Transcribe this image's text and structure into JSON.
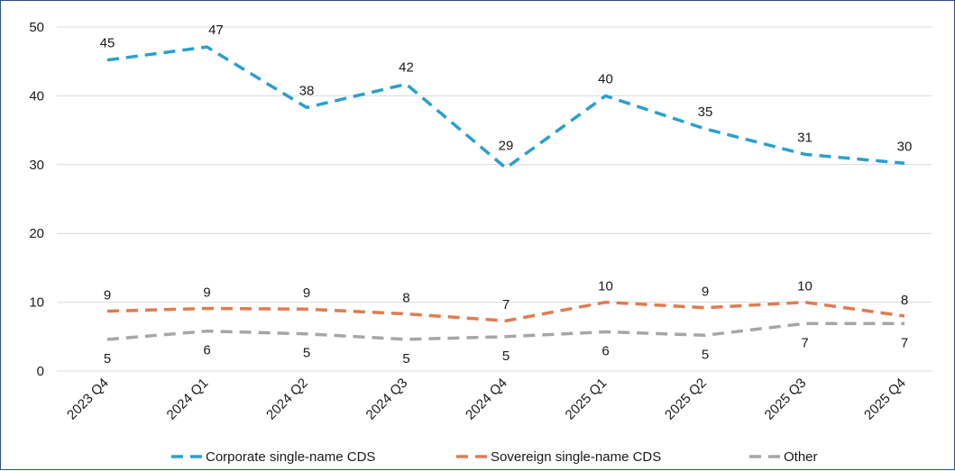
{
  "chart_data": {
    "type": "line",
    "title": "",
    "xlabel": "",
    "ylabel": "",
    "categories": [
      "2023 Q4",
      "2024 Q1",
      "2024 Q2",
      "2024 Q3",
      "2024 Q4",
      "2025 Q1",
      "2025 Q2",
      "2025 Q3",
      "2025 Q4"
    ],
    "ylim": [
      0,
      50
    ],
    "yticks": [
      0,
      10,
      20,
      30,
      40,
      50
    ],
    "grid": true,
    "legend_position": "bottom",
    "series": [
      {
        "name": "Corporate single-name CDS",
        "color": "#2a9fd0",
        "values": [
          45.2,
          47.1,
          38.3,
          41.7,
          29.5,
          40.0,
          35.2,
          31.5,
          30.2
        ],
        "labels": [
          "45",
          "47",
          "38",
          "42",
          "29",
          "40",
          "35",
          "31",
          "30"
        ]
      },
      {
        "name": "Sovereign single-name CDS",
        "color": "#e07b4f",
        "values": [
          8.7,
          9.1,
          9.0,
          8.3,
          7.3,
          10.0,
          9.2,
          10.0,
          8.0
        ],
        "labels": [
          "9",
          "9",
          "9",
          "8",
          "7",
          "10",
          "9",
          "10",
          "8"
        ]
      },
      {
        "name": "Other",
        "color": "#a6a6a6",
        "values": [
          4.6,
          5.8,
          5.4,
          4.6,
          5.0,
          5.7,
          5.2,
          6.9,
          6.9
        ],
        "labels": [
          "5",
          "6",
          "5",
          "5",
          "5",
          "6",
          "5",
          "7",
          "7"
        ]
      }
    ]
  }
}
